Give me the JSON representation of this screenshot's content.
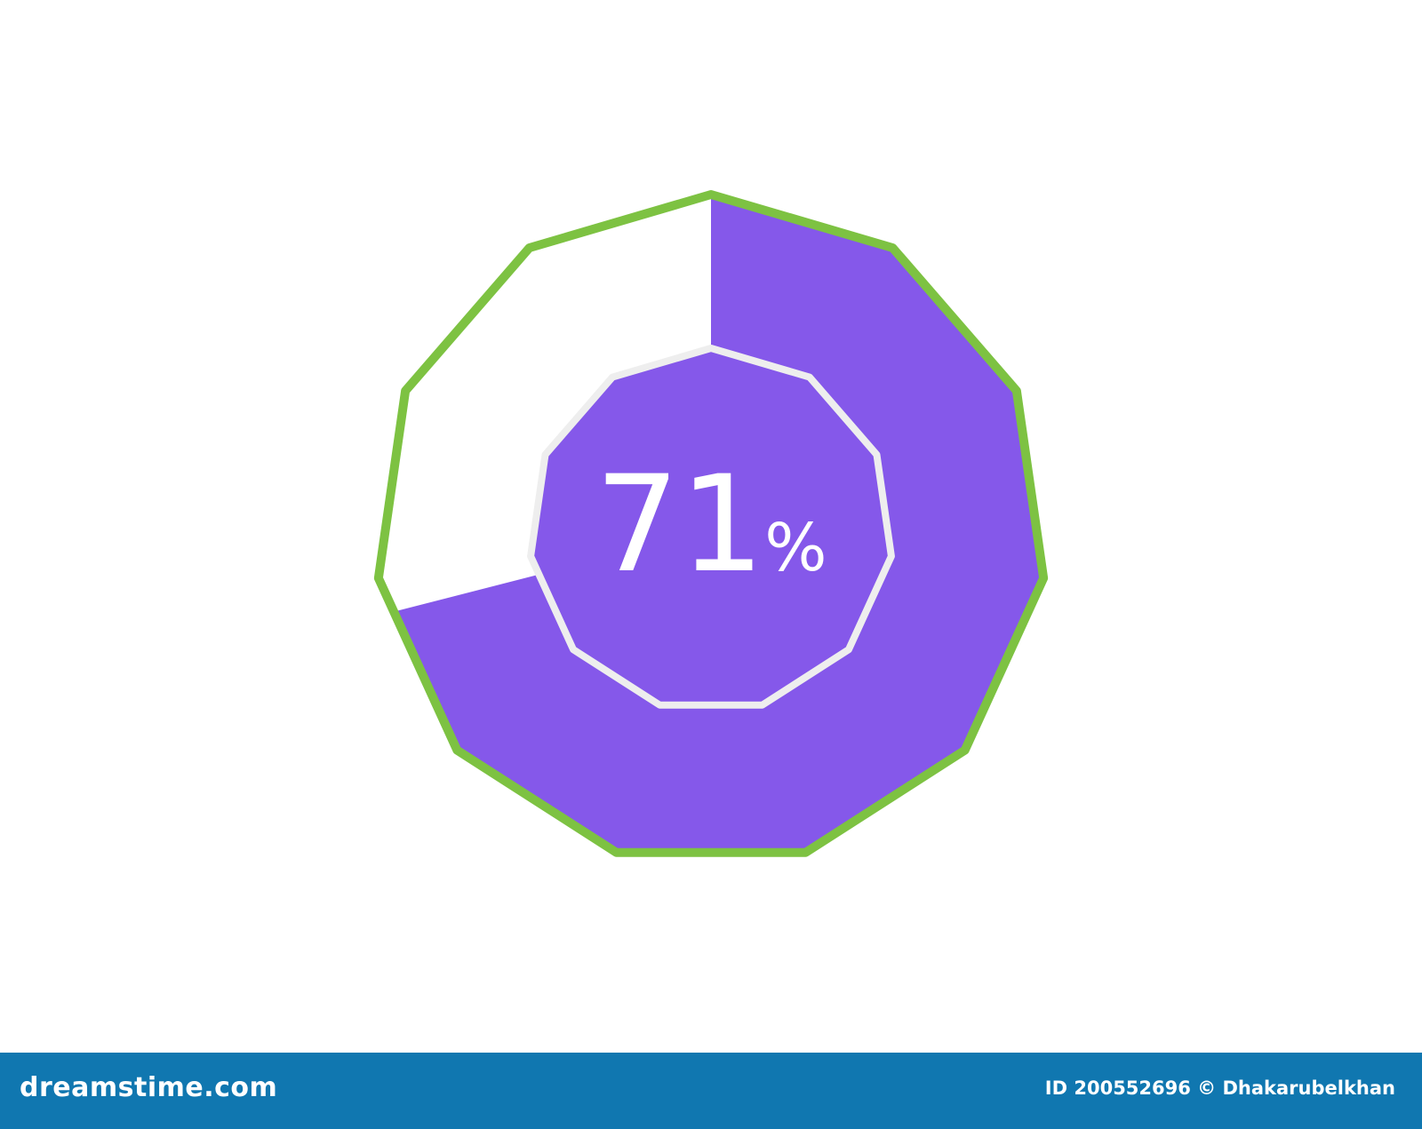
{
  "chart_data": {
    "type": "pie",
    "shape": "hendecagon-donut",
    "value": 71,
    "max": 100,
    "center_label": "71",
    "center_unit": "%",
    "colors": {
      "fill": "#8558ea",
      "remainder": "#ffffff",
      "outer_border": "#7dc242",
      "inner_border": "#eeeeee",
      "label": "#ffffff"
    }
  },
  "footer": {
    "brand": "dreamstime.com",
    "credit": "ID 200552696 © Dhakarubelkhan",
    "background": "#1077b0"
  }
}
